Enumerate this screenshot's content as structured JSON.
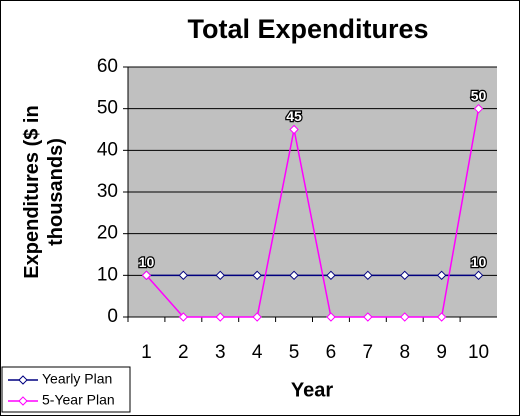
{
  "chart_data": {
    "type": "line",
    "title": "Total Expenditures",
    "x_label": "Year",
    "y_label": "Expenditures ($ in thousands)",
    "categories": [
      "1",
      "2",
      "3",
      "4",
      "5",
      "6",
      "7",
      "8",
      "9",
      "10"
    ],
    "series": [
      {
        "name": "Yearly Plan",
        "color": "#000080",
        "values": [
          10,
          10,
          10,
          10,
          10,
          10,
          10,
          10,
          10,
          10
        ]
      },
      {
        "name": "5-Year Plan",
        "color": "#ff00ff",
        "values": [
          10,
          0,
          0,
          0,
          45,
          0,
          0,
          0,
          0,
          50
        ]
      }
    ],
    "ylim": [
      0,
      60
    ],
    "yticks": [
      0,
      10,
      20,
      30,
      40,
      50,
      60
    ],
    "grid": true,
    "legend": "bottom-left"
  }
}
